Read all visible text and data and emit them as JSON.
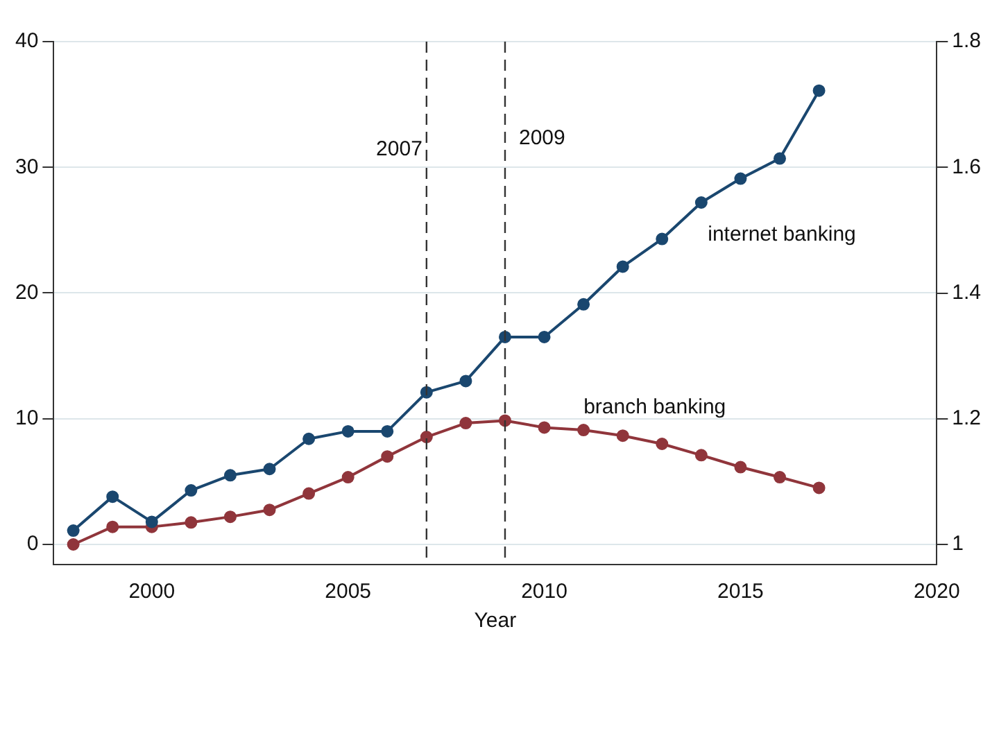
{
  "chart_data": {
    "type": "line",
    "xlabel": "Year",
    "x": [
      1998,
      1999,
      2000,
      2001,
      2002,
      2003,
      2004,
      2005,
      2006,
      2007,
      2008,
      2009,
      2010,
      2011,
      2012,
      2013,
      2014,
      2015,
      2016,
      2017
    ],
    "series": [
      {
        "name": "internet banking",
        "color": "#1a476f",
        "values": [
          1.1,
          3.8,
          1.8,
          4.3,
          5.5,
          6.0,
          8.4,
          9.0,
          9.0,
          12.1,
          13.0,
          16.5,
          16.5,
          19.1,
          22.1,
          24.3,
          27.2,
          29.1,
          30.7,
          36.1
        ]
      },
      {
        "name": "branch banking",
        "color": "#90353b",
        "axis": "y2",
        "values": [
          1.0,
          1.028,
          1.028,
          1.035,
          1.044,
          1.055,
          1.081,
          1.107,
          1.14,
          1.171,
          1.193,
          1.197,
          1.186,
          1.182,
          1.173,
          1.16,
          1.142,
          1.123,
          1.107,
          1.09
        ]
      }
    ],
    "xlim": [
      1997.5,
      2020
    ],
    "xticks": [
      2000,
      2005,
      2010,
      2015,
      2020
    ],
    "ylim": [
      -1.6,
      40
    ],
    "yticks": [
      0,
      10,
      20,
      30,
      40
    ],
    "y2lim": [
      0.968,
      1.8
    ],
    "y2ticks": [
      1,
      1.2,
      1.4,
      1.6,
      1.8
    ],
    "ref_lines": [
      {
        "axis": "x",
        "value": 2007,
        "label": "2007",
        "color": "#333333",
        "line_style": "dashed"
      },
      {
        "axis": "x",
        "value": 2009,
        "label": "2009",
        "color": "#333333",
        "line_style": "dashed"
      }
    ],
    "grid": "y",
    "legend": false,
    "marker": "circle",
    "line_style": "solid"
  }
}
